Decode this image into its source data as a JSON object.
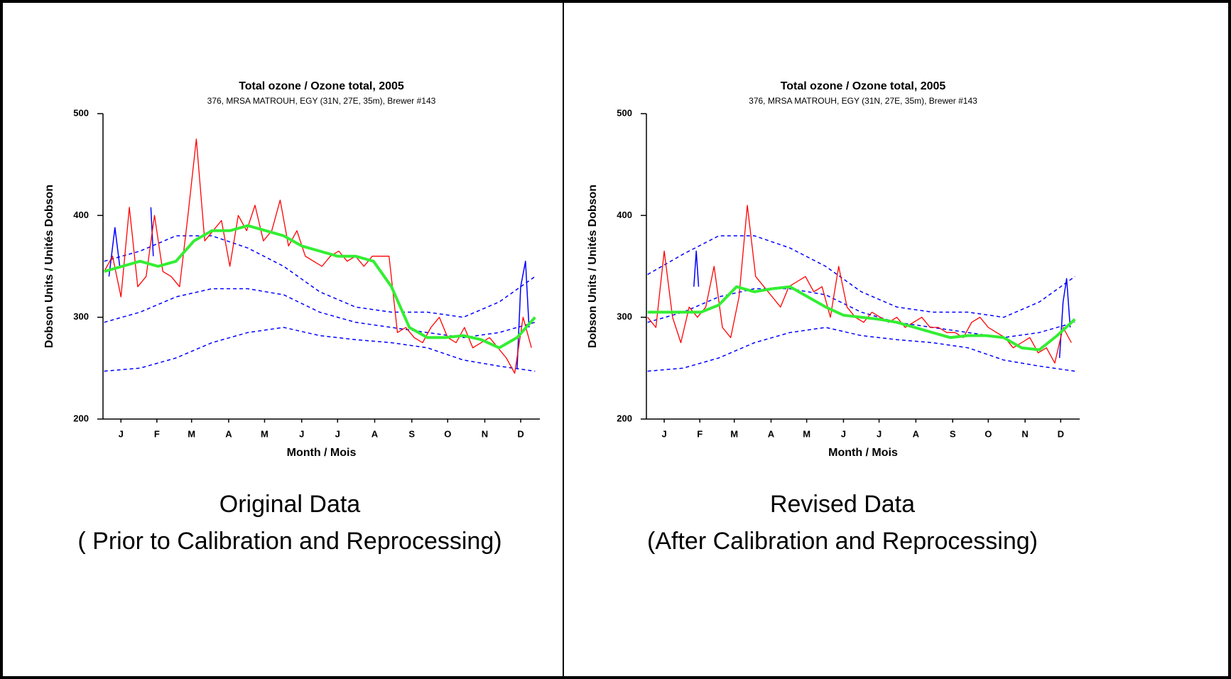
{
  "chart_data": [
    {
      "type": "line",
      "title": "Total ozone / Ozone total, 2005",
      "subtitle": "376, MRSA MATROUH, EGY (31N, 27E, 35m), Brewer #143",
      "y_label": "Dobson Units / Unités Dobson",
      "x_label": "Month / Mois",
      "caption": [
        "Original Data",
        "( Prior to Calibration and Reprocessing)"
      ],
      "xlim": [
        0,
        365
      ],
      "ylim": [
        200,
        500
      ],
      "yticks": [
        200,
        300,
        400,
        500
      ],
      "xticks": [
        {
          "value": 15,
          "label": "J"
        },
        {
          "value": 45,
          "label": "F"
        },
        {
          "value": 74,
          "label": "M"
        },
        {
          "value": 105,
          "label": "A"
        },
        {
          "value": 135,
          "label": "M"
        },
        {
          "value": 166,
          "label": "J"
        },
        {
          "value": 196,
          "label": "J"
        },
        {
          "value": 227,
          "label": "A"
        },
        {
          "value": 258,
          "label": "S"
        },
        {
          "value": 288,
          "label": "O"
        },
        {
          "value": 319,
          "label": "N"
        },
        {
          "value": 349,
          "label": "D"
        }
      ],
      "series": [
        {
          "color": "#0000ff",
          "dashed": true,
          "width": 1.5,
          "x": [
            1,
            31,
            61,
            91,
            121,
            151,
            181,
            211,
            241,
            271,
            301,
            331,
            361
          ],
          "values": [
            355,
            365,
            380,
            380,
            368,
            350,
            325,
            310,
            305,
            305,
            300,
            315,
            340
          ]
        },
        {
          "color": "#0000ff",
          "dashed": true,
          "width": 1.5,
          "x": [
            1,
            31,
            61,
            91,
            121,
            151,
            181,
            211,
            241,
            271,
            301,
            331,
            361
          ],
          "values": [
            295,
            305,
            320,
            328,
            328,
            322,
            305,
            295,
            290,
            285,
            280,
            285,
            295
          ]
        },
        {
          "color": "#0000ff",
          "dashed": true,
          "width": 1.5,
          "x": [
            1,
            31,
            61,
            91,
            121,
            151,
            181,
            211,
            241,
            271,
            301,
            331,
            361
          ],
          "values": [
            247,
            250,
            260,
            275,
            285,
            290,
            282,
            278,
            275,
            270,
            258,
            252,
            247
          ]
        },
        {
          "color": "#0000ff",
          "width": 1.5,
          "x": [
            5,
            10,
            14,
            38,
            40,
            42,
            343,
            346,
            349,
            353,
            356
          ],
          "values": [
            340,
            388,
            350,
            null,
            408,
            360,
            null,
            250,
            330,
            355,
            290
          ]
        },
        {
          "color": "#ff0000",
          "width": 1.3,
          "x": [
            1,
            8,
            15,
            22,
            29,
            36,
            43,
            50,
            57,
            64,
            71,
            78,
            85,
            92,
            99,
            106,
            113,
            120,
            127,
            134,
            141,
            148,
            155,
            162,
            169,
            176,
            183,
            190,
            197,
            204,
            211,
            218,
            225,
            232,
            239,
            246,
            253,
            260,
            267,
            274,
            281,
            288,
            295,
            302,
            309,
            316,
            323,
            330,
            337,
            344,
            351,
            358
          ],
          "values": [
            345,
            360,
            320,
            408,
            330,
            340,
            400,
            345,
            340,
            330,
            400,
            475,
            375,
            385,
            395,
            350,
            400,
            385,
            410,
            375,
            385,
            415,
            370,
            385,
            360,
            355,
            350,
            360,
            365,
            355,
            360,
            350,
            360,
            360,
            360,
            285,
            290,
            280,
            275,
            290,
            300,
            280,
            275,
            290,
            270,
            275,
            280,
            270,
            260,
            245,
            300,
            270
          ]
        },
        {
          "color": "#33ee33",
          "width": 4,
          "x": [
            1,
            16,
            31,
            46,
            61,
            76,
            91,
            106,
            121,
            136,
            151,
            166,
            181,
            196,
            211,
            226,
            241,
            256,
            271,
            286,
            301,
            316,
            331,
            346,
            361
          ],
          "values": [
            345,
            350,
            355,
            350,
            355,
            375,
            385,
            385,
            390,
            385,
            380,
            370,
            365,
            360,
            360,
            355,
            330,
            290,
            280,
            280,
            282,
            278,
            270,
            280,
            300
          ]
        }
      ]
    },
    {
      "type": "line",
      "title": "Total ozone / Ozone total, 2005",
      "subtitle": "376, MRSA MATROUH, EGY (31N, 27E, 35m), Brewer #143",
      "y_label": "Dobson Units / Unités Dobson",
      "x_label": "Month / Mois",
      "caption": [
        "Revised Data",
        "(After Calibration and Reprocessing)"
      ],
      "xlim": [
        0,
        365
      ],
      "ylim": [
        200,
        500
      ],
      "yticks": [
        200,
        300,
        400,
        500
      ],
      "xticks": [
        {
          "value": 15,
          "label": "J"
        },
        {
          "value": 45,
          "label": "F"
        },
        {
          "value": 74,
          "label": "M"
        },
        {
          "value": 105,
          "label": "A"
        },
        {
          "value": 135,
          "label": "M"
        },
        {
          "value": 166,
          "label": "J"
        },
        {
          "value": 196,
          "label": "J"
        },
        {
          "value": 227,
          "label": "A"
        },
        {
          "value": 258,
          "label": "S"
        },
        {
          "value": 288,
          "label": "O"
        },
        {
          "value": 319,
          "label": "N"
        },
        {
          "value": 349,
          "label": "D"
        }
      ],
      "series": [
        {
          "color": "#0000ff",
          "dashed": true,
          "width": 1.5,
          "x": [
            1,
            31,
            61,
            91,
            121,
            151,
            181,
            211,
            241,
            271,
            301,
            331,
            361
          ],
          "values": [
            342,
            362,
            380,
            380,
            368,
            350,
            325,
            310,
            305,
            305,
            300,
            315,
            340
          ]
        },
        {
          "color": "#0000ff",
          "dashed": true,
          "width": 1.5,
          "x": [
            1,
            31,
            61,
            91,
            121,
            151,
            181,
            211,
            241,
            271,
            301,
            331,
            361
          ],
          "values": [
            295,
            305,
            320,
            328,
            328,
            322,
            305,
            295,
            290,
            285,
            280,
            285,
            295
          ]
        },
        {
          "color": "#0000ff",
          "dashed": true,
          "width": 1.5,
          "x": [
            1,
            31,
            61,
            91,
            121,
            151,
            181,
            211,
            241,
            271,
            301,
            331,
            361
          ],
          "values": [
            247,
            250,
            260,
            275,
            285,
            290,
            282,
            278,
            275,
            270,
            258,
            252,
            247
          ]
        },
        {
          "color": "#0000ff",
          "width": 1.5,
          "x": [
            40,
            42,
            44,
            345,
            348,
            351,
            354,
            357
          ],
          "values": [
            330,
            365,
            330,
            null,
            260,
            315,
            338,
            290
          ]
        },
        {
          "color": "#ff0000",
          "width": 1.3,
          "x": [
            1,
            8,
            15,
            22,
            29,
            36,
            43,
            50,
            57,
            64,
            71,
            78,
            85,
            92,
            99,
            106,
            113,
            120,
            127,
            134,
            141,
            148,
            155,
            162,
            169,
            176,
            183,
            190,
            197,
            204,
            211,
            218,
            225,
            232,
            239,
            246,
            253,
            260,
            267,
            274,
            281,
            288,
            295,
            302,
            309,
            316,
            323,
            330,
            337,
            344,
            351,
            358
          ],
          "values": [
            300,
            290,
            365,
            300,
            275,
            310,
            300,
            310,
            350,
            290,
            280,
            320,
            410,
            340,
            330,
            320,
            310,
            330,
            335,
            340,
            325,
            330,
            300,
            350,
            310,
            300,
            295,
            305,
            300,
            295,
            300,
            290,
            295,
            300,
            290,
            290,
            285,
            285,
            280,
            295,
            300,
            290,
            285,
            280,
            270,
            275,
            280,
            265,
            270,
            255,
            290,
            275
          ]
        },
        {
          "color": "#33ee33",
          "width": 4,
          "x": [
            1,
            16,
            31,
            46,
            61,
            76,
            91,
            106,
            121,
            136,
            151,
            166,
            181,
            196,
            211,
            226,
            241,
            256,
            271,
            286,
            301,
            316,
            331,
            346,
            361
          ],
          "values": [
            305,
            305,
            305,
            305,
            312,
            330,
            325,
            328,
            330,
            320,
            310,
            302,
            300,
            298,
            295,
            290,
            285,
            280,
            282,
            282,
            280,
            270,
            268,
            282,
            298
          ]
        }
      ]
    }
  ]
}
